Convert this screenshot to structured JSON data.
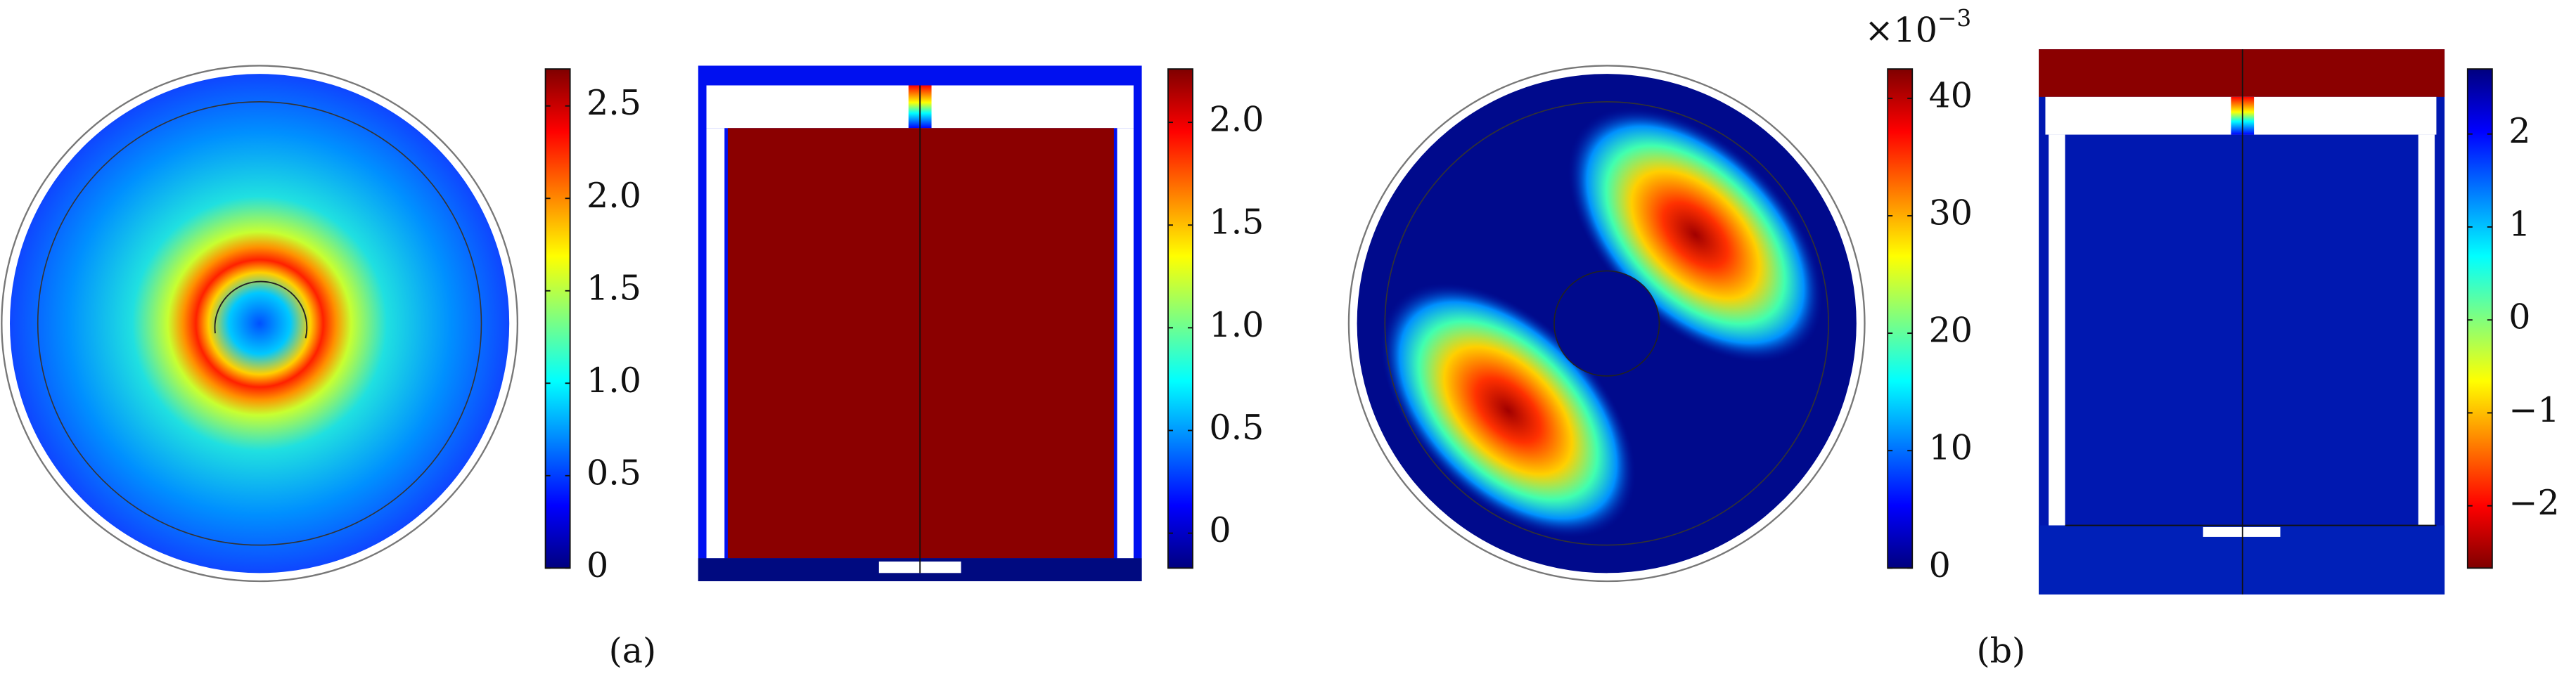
{
  "panels": [
    {
      "label": "(a)",
      "colorbars": [
        {
          "colormap": "jet",
          "reversed": false,
          "range": [
            0,
            2.7
          ],
          "ticks": [
            0,
            0.5,
            {
              "value": 1,
              "label": "1.0"
            },
            1.5,
            {
              "value": 2,
              "label": "2.0"
            },
            2.5
          ]
        },
        {
          "colormap": "jet",
          "reversed": false,
          "range": [
            -0.17,
            2.26
          ],
          "ticks": [
            0,
            0.5,
            {
              "value": 1,
              "label": "1.0"
            },
            1.5,
            {
              "value": 2,
              "label": "2.0"
            }
          ]
        }
      ]
    },
    {
      "label": "(b)",
      "colorbars": [
        {
          "colormap": "jet",
          "reversed": false,
          "range": [
            0,
            42.5
          ],
          "multiplier": {
            "base": "×10",
            "exponent": "−3"
          },
          "ticks": [
            0,
            10,
            20,
            30,
            40
          ]
        },
        {
          "colormap": "jet",
          "reversed": true,
          "range": [
            -2.67,
            2.7
          ],
          "ticks": [
            {
              "value": -2,
              "label": "−2"
            },
            {
              "value": -1,
              "label": "−1"
            },
            0,
            1,
            2
          ]
        }
      ]
    }
  ]
}
